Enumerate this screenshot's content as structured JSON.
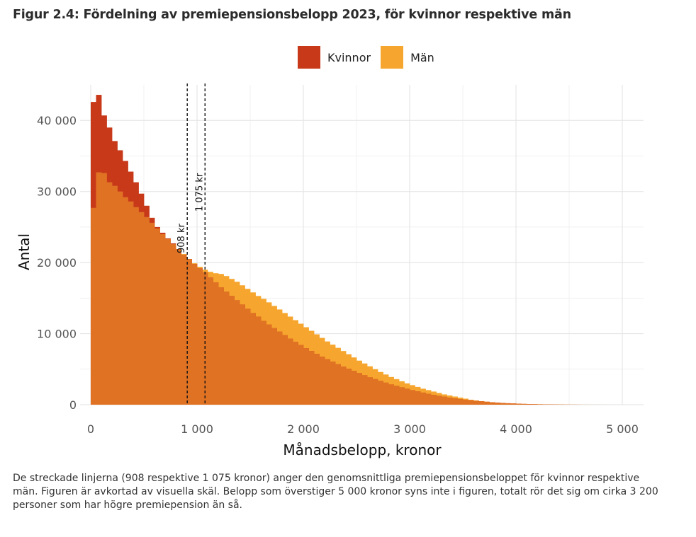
{
  "title": "Figur 2.4: Fördelning av premiepensionsbelopp 2023, för kvinnor respektive män",
  "legend": [
    {
      "label": "Kvinnor",
      "color": "#c8391a"
    },
    {
      "label": "Män",
      "color": "#f6a62e"
    }
  ],
  "overlap_color": "#e07224",
  "note": "De streckade linjerna (908 respektive 1 075 kronor) anger den genomsnittliga premiepensionsbeloppet för kvinnor respektive män. Figuren är avkortad av visuella skäl. Belopp som överstiger 5 000 kronor syns inte i figuren, totalt rör det sig om cirka 3 200 personer som har högre premiepension än så.",
  "chart_data": {
    "type": "histogram",
    "xlabel": "Månadsbelopp, kronor",
    "ylabel": "Antal",
    "xlim": [
      -100,
      5200
    ],
    "ylim": [
      0,
      45000
    ],
    "grid": true,
    "legend_position": "top",
    "x_ticks": [
      0,
      1000,
      2000,
      3000,
      4000,
      5000
    ],
    "x_tick_labels": [
      "0",
      "1 000",
      "2 000",
      "3 000",
      "4 000",
      "5 000"
    ],
    "y_ticks": [
      0,
      10000,
      20000,
      30000,
      40000
    ],
    "y_tick_labels": [
      "0",
      "10 000",
      "20 000",
      "30 000",
      "40 000"
    ],
    "bin_start": 0,
    "bin_width": 50,
    "series": [
      {
        "name": "Kvinnor",
        "color": "#c8391a",
        "values": [
          42600,
          43600,
          40700,
          39000,
          37100,
          35800,
          34300,
          32800,
          31300,
          29700,
          28000,
          26300,
          25000,
          24200,
          23400,
          22700,
          21900,
          21100,
          20500,
          19800,
          19200,
          18600,
          17900,
          17200,
          16500,
          15900,
          15300,
          14700,
          14100,
          13500,
          12900,
          12400,
          11800,
          11300,
          10800,
          10300,
          9800,
          9300,
          8850,
          8400,
          7950,
          7550,
          7150,
          6750,
          6400,
          6050,
          5700,
          5350,
          5050,
          4750,
          4450,
          4150,
          3850,
          3600,
          3350,
          3100,
          2850,
          2650,
          2450,
          2250,
          2050,
          1870,
          1700,
          1540,
          1390,
          1250,
          1120,
          1000,
          890,
          790,
          700,
          620,
          540,
          470,
          410,
          350,
          300,
          250,
          210,
          170,
          140,
          110,
          90,
          70,
          55,
          40,
          30,
          20,
          15,
          10,
          8,
          5,
          3,
          2,
          1,
          1,
          0,
          0,
          0,
          0
        ]
      },
      {
        "name": "Män",
        "color": "#f6a62e",
        "values": [
          27700,
          32700,
          32600,
          31300,
          30800,
          30000,
          29200,
          28600,
          27800,
          27100,
          26400,
          25600,
          24800,
          24000,
          23300,
          22600,
          21900,
          21200,
          20500,
          19900,
          19400,
          19000,
          18700,
          18500,
          18400,
          18100,
          17700,
          17300,
          16800,
          16300,
          15800,
          15300,
          14900,
          14400,
          13900,
          13400,
          12900,
          12400,
          11900,
          11400,
          10900,
          10400,
          9900,
          9400,
          8900,
          8450,
          8000,
          7550,
          7100,
          6650,
          6200,
          5800,
          5400,
          5000,
          4600,
          4250,
          3900,
          3600,
          3300,
          3000,
          2750,
          2500,
          2250,
          2050,
          1850,
          1650,
          1450,
          1300,
          1150,
          1000,
          850,
          700,
          600,
          500,
          420,
          350,
          290,
          240,
          200,
          170,
          140,
          115,
          95,
          80,
          65,
          52,
          40,
          30,
          22,
          16,
          12,
          9,
          6,
          4,
          3,
          2,
          1,
          1,
          0,
          0
        ]
      }
    ],
    "reference_lines": [
      {
        "x": 908,
        "label": "908  kr"
      },
      {
        "x": 1075,
        "label": "1 075  kr"
      }
    ]
  }
}
